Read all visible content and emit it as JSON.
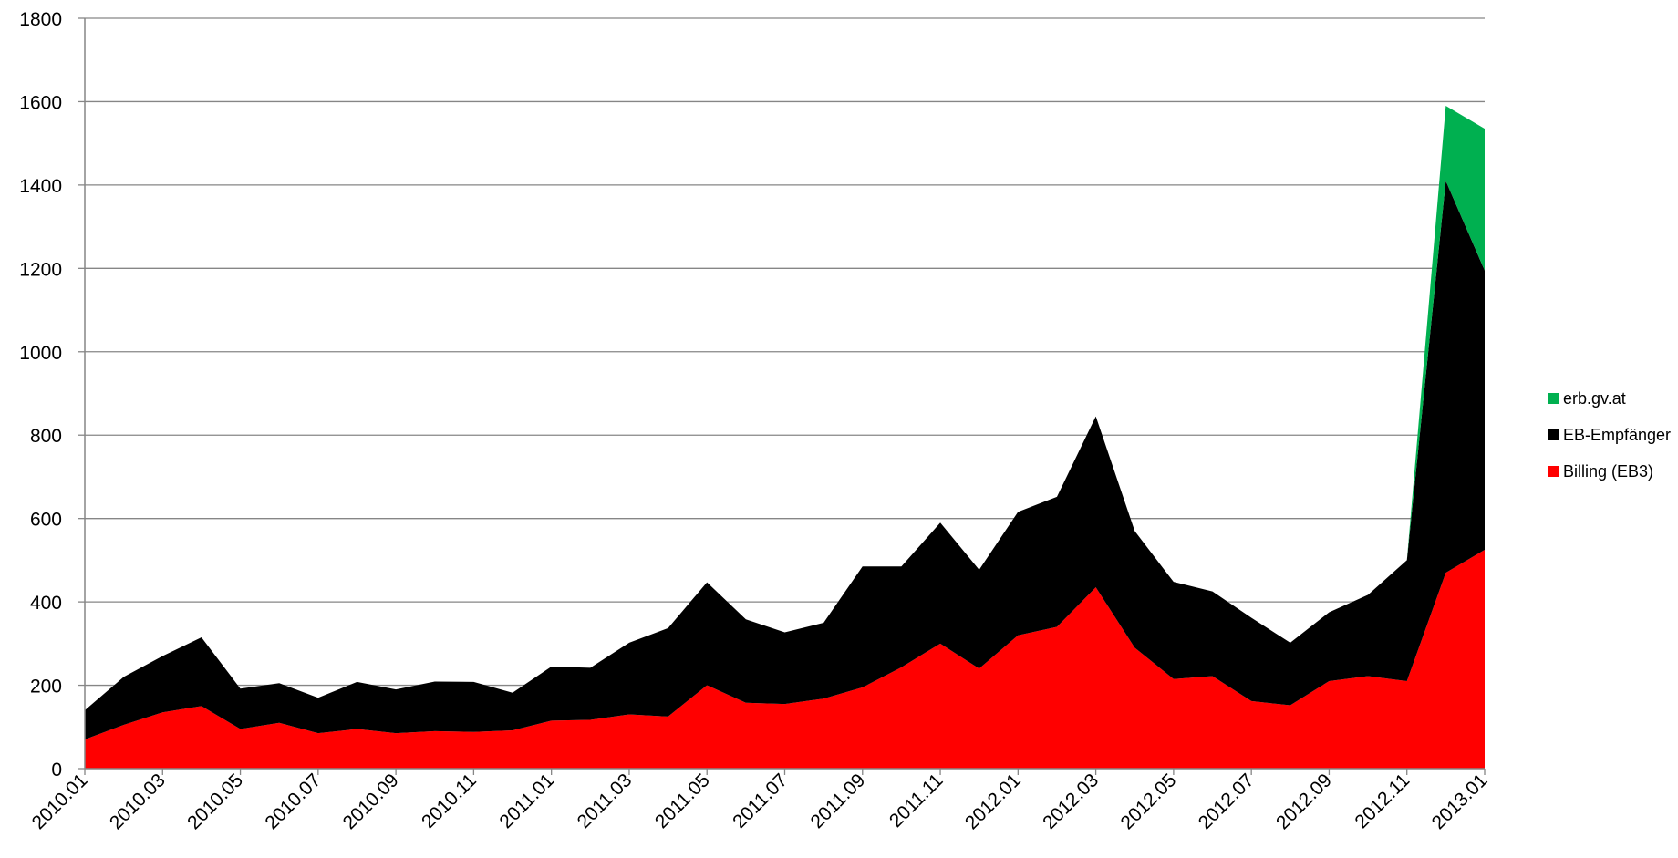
{
  "chart_data": {
    "type": "area",
    "stacked": true,
    "ylim": [
      0,
      1800
    ],
    "yticks": [
      0,
      200,
      400,
      600,
      800,
      1000,
      1200,
      1400,
      1600,
      1800
    ],
    "grid": true,
    "legend_position": "right",
    "x": [
      "2010.01",
      "2010.02",
      "2010.03",
      "2010.04",
      "2010.05",
      "2010.06",
      "2010.07",
      "2010.08",
      "2010.09",
      "2010.10",
      "2010.11",
      "2010.12",
      "2011.01",
      "2011.02",
      "2011.03",
      "2011.04",
      "2011.05",
      "2011.06",
      "2011.07",
      "2011.08",
      "2011.09",
      "2011.10",
      "2011.11",
      "2011.12",
      "2012.01",
      "2012.02",
      "2012.03",
      "2012.04",
      "2012.05",
      "2012.06",
      "2012.07",
      "2012.08",
      "2012.09",
      "2012.10",
      "2012.11",
      "2012.12",
      "2013.01"
    ],
    "xtick_labels": [
      "2010.01",
      "2010.03",
      "2010.05",
      "2010.07",
      "2010.09",
      "2010.11",
      "2011.01",
      "2011.03",
      "2011.05",
      "2011.07",
      "2011.09",
      "2011.11",
      "2012.01",
      "2012.03",
      "2012.05",
      "2012.07",
      "2012.09",
      "2012.11",
      "2013.01"
    ],
    "series": [
      {
        "name": "Billing (EB3)",
        "color": "#ff0000",
        "values": [
          70,
          105,
          135,
          150,
          95,
          110,
          85,
          95,
          85,
          90,
          88,
          92,
          115,
          117,
          130,
          125,
          200,
          158,
          155,
          168,
          195,
          243,
          300,
          240,
          320,
          340,
          435,
          290,
          215,
          222,
          162,
          152,
          210,
          222,
          210,
          470,
          525
        ]
      },
      {
        "name": "EB-Empfänger",
        "color": "#000000",
        "values": [
          70,
          115,
          135,
          165,
          97,
          95,
          85,
          113,
          105,
          119,
          120,
          90,
          130,
          125,
          172,
          212,
          247,
          200,
          172,
          182,
          290,
          242,
          290,
          237,
          296,
          312,
          410,
          280,
          233,
          203,
          200,
          150,
          165,
          195,
          290,
          940,
          670
        ]
      },
      {
        "name": "erb.gv.at",
        "color": "#00b050",
        "values": [
          0,
          0,
          0,
          0,
          0,
          0,
          0,
          0,
          0,
          0,
          0,
          0,
          0,
          0,
          0,
          0,
          0,
          0,
          0,
          0,
          0,
          0,
          0,
          0,
          0,
          0,
          0,
          0,
          0,
          0,
          0,
          0,
          0,
          0,
          0,
          180,
          340
        ]
      }
    ]
  }
}
